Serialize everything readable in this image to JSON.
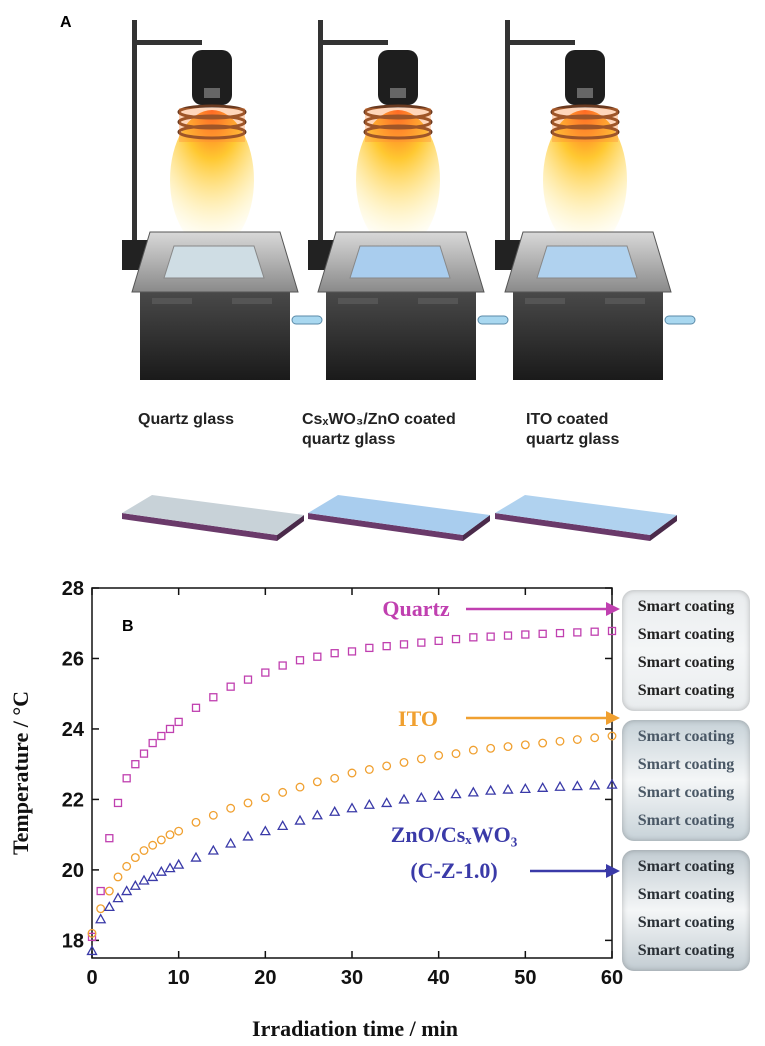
{
  "panel_a": {
    "label": "A",
    "setups": [
      {
        "caption_line1": "Quartz  glass",
        "caption_line2": "",
        "film_color": "#cfdde4"
      },
      {
        "caption_line1": "CsₓWO₃/ZnO coated",
        "caption_line2": "quartz glass",
        "film_color": "#a9cdee"
      },
      {
        "caption_line1": "ITO coated",
        "caption_line2": "quartz glass",
        "film_color": "#b0d2ef"
      }
    ]
  },
  "panel_b": {
    "label": "B"
  },
  "chart_data": {
    "type": "scatter",
    "xlabel": "Irradiation time / min",
    "ylabel": "Temperature / °C",
    "xlim": [
      0,
      60
    ],
    "ylim": [
      17.5,
      28
    ],
    "xticks": [
      0,
      10,
      20,
      30,
      40,
      50,
      60
    ],
    "yticks": [
      18,
      20,
      22,
      24,
      26,
      28
    ],
    "x": [
      0,
      1,
      2,
      3,
      4,
      5,
      6,
      7,
      8,
      9,
      10,
      12,
      14,
      16,
      18,
      20,
      22,
      24,
      26,
      28,
      30,
      32,
      34,
      36,
      38,
      40,
      42,
      44,
      46,
      48,
      50,
      52,
      54,
      56,
      58,
      60
    ],
    "series": [
      {
        "name": "Quartz",
        "color": "#c040b0",
        "marker": "square",
        "values": [
          18.1,
          19.4,
          20.9,
          21.9,
          22.6,
          23.0,
          23.3,
          23.6,
          23.8,
          24.0,
          24.2,
          24.6,
          24.9,
          25.2,
          25.4,
          25.6,
          25.8,
          25.95,
          26.05,
          26.15,
          26.2,
          26.3,
          26.35,
          26.4,
          26.45,
          26.5,
          26.55,
          26.6,
          26.62,
          26.65,
          26.68,
          26.7,
          26.72,
          26.74,
          26.76,
          26.78
        ]
      },
      {
        "name": "ITO",
        "color": "#f0a030",
        "marker": "circle",
        "values": [
          18.2,
          18.9,
          19.4,
          19.8,
          20.1,
          20.35,
          20.55,
          20.7,
          20.85,
          21.0,
          21.1,
          21.35,
          21.55,
          21.75,
          21.9,
          22.05,
          22.2,
          22.35,
          22.5,
          22.6,
          22.75,
          22.85,
          22.95,
          23.05,
          23.15,
          23.25,
          23.3,
          23.4,
          23.45,
          23.5,
          23.55,
          23.6,
          23.65,
          23.7,
          23.75,
          23.8
        ]
      },
      {
        "name": "ZnO/CsₓWO₃ (C-Z-1.0)",
        "color": "#3a3aa8",
        "marker": "triangle",
        "values": [
          17.7,
          18.6,
          18.95,
          19.2,
          19.4,
          19.55,
          19.7,
          19.8,
          19.95,
          20.05,
          20.15,
          20.35,
          20.55,
          20.75,
          20.95,
          21.1,
          21.25,
          21.4,
          21.55,
          21.65,
          21.75,
          21.85,
          21.9,
          22.0,
          22.05,
          22.1,
          22.15,
          22.2,
          22.25,
          22.28,
          22.3,
          22.33,
          22.36,
          22.38,
          22.4,
          22.42
        ]
      }
    ],
    "annotations": [
      {
        "text": "Quartz",
        "color": "#c040b0"
      },
      {
        "text": "ITO",
        "color": "#f0a030"
      },
      {
        "text": "ZnO/CsₓWO₃",
        "line2": "(C-Z-1.0)",
        "color": "#3a3aa8"
      }
    ]
  },
  "thumbnails": [
    {
      "lines": [
        "Smart coating",
        "Smart coating",
        "Smart coating",
        "Smart coating"
      ],
      "bg": "#e9ecee",
      "text_color": "#222222"
    },
    {
      "lines": [
        "Smart coating",
        "Smart coating",
        "Smart coating",
        "Smart coating"
      ],
      "bg": "#c7d2d8",
      "text_color": "#4a5866"
    },
    {
      "lines": [
        "Smart coating",
        "Smart coating",
        "Smart coating",
        "Smart coating"
      ],
      "bg": "#c2ccd2",
      "text_color": "#2a3036"
    }
  ]
}
